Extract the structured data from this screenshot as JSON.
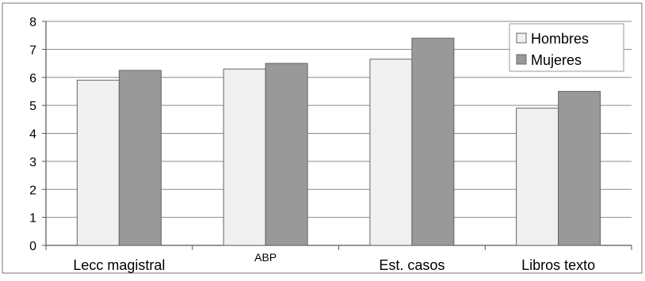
{
  "chart_data": {
    "type": "bar",
    "categories": [
      "Lecc magistral",
      "ABP",
      "Est. casos",
      "Libros texto"
    ],
    "series": [
      {
        "name": "Hombres",
        "values": [
          5.9,
          6.3,
          6.65,
          4.9
        ],
        "color": "#f0f0f0"
      },
      {
        "name": "Mujeres",
        "values": [
          6.25,
          6.5,
          7.4,
          5.5
        ],
        "color": "#999999"
      }
    ],
    "y_ticks": [
      "0",
      "1",
      "2",
      "3",
      "4",
      "5",
      "6",
      "7",
      "8"
    ],
    "ylim": [
      0,
      8
    ],
    "grid": true,
    "legend_position": "top-right",
    "title": "",
    "xlabel": "",
    "ylabel": ""
  }
}
